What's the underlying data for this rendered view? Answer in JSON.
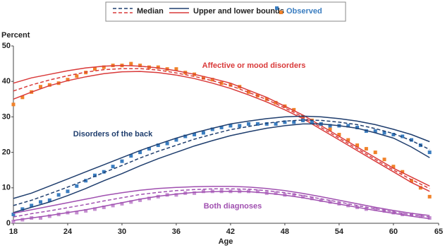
{
  "chart_data": {
    "type": "line",
    "y_label": "Percent",
    "x_label": "Age",
    "xlim": [
      18,
      65
    ],
    "xticks": [
      18,
      24,
      30,
      36,
      42,
      48,
      54,
      60,
      65
    ],
    "ylim": [
      0,
      50
    ],
    "yticks": [
      0,
      10,
      20,
      30,
      40,
      50
    ],
    "legend": [
      {
        "label": "Median",
        "style": "dashed",
        "colors": [
          "#1f3e6e",
          "#d93a3a"
        ]
      },
      {
        "label": "Upper and lower bounds",
        "style": "solid",
        "colors": [
          "#1f3e6e",
          "#d93a3a"
        ]
      },
      {
        "label": "Observed",
        "style": "square",
        "colors": [
          "#3a7dc0",
          "#f0822a"
        ]
      }
    ],
    "x": [
      18,
      20,
      22,
      24,
      26,
      28,
      30,
      32,
      34,
      36,
      38,
      40,
      42,
      44,
      46,
      48,
      50,
      52,
      54,
      56,
      58,
      60,
      62,
      64
    ],
    "observed_x": [
      18,
      19,
      20,
      21,
      22,
      23,
      24,
      25,
      26,
      27,
      28,
      29,
      30,
      31,
      32,
      33,
      34,
      35,
      36,
      37,
      38,
      39,
      40,
      41,
      42,
      43,
      44,
      45,
      46,
      47,
      48,
      49,
      50,
      51,
      52,
      53,
      54,
      55,
      56,
      57,
      58,
      59,
      60,
      61,
      62,
      63,
      64
    ],
    "groups": [
      {
        "name": "Affective or mood disorders",
        "color": "#d93a3a",
        "marker_color": "#f0822a",
        "median": [
          37.3,
          39,
          40.4,
          41.6,
          42.6,
          43.3,
          43.6,
          43.6,
          43.2,
          42.4,
          41.4,
          40.2,
          38.8,
          36.9,
          34.9,
          32.5,
          30,
          27,
          24,
          21,
          18,
          15,
          12.3,
          9.8
        ],
        "upper": [
          39.5,
          41,
          42,
          43,
          43.8,
          44.3,
          44.5,
          44.3,
          43.8,
          43,
          42,
          40.8,
          39.5,
          37.5,
          35.5,
          33,
          30.5,
          27.5,
          24.5,
          21.5,
          18.5,
          15.5,
          13,
          10.5
        ],
        "lower": [
          35,
          37,
          38.8,
          40.2,
          41.3,
          42.2,
          42.7,
          42.8,
          42.5,
          41.8,
          40.8,
          39.5,
          38,
          36.2,
          34.2,
          32,
          29.5,
          26.5,
          23.5,
          20.5,
          17.5,
          14.5,
          11.5,
          9
        ],
        "observed": [
          33.5,
          35.5,
          37,
          38.5,
          39,
          39.5,
          40.5,
          41.5,
          42.5,
          43.5,
          44,
          44.5,
          44.5,
          45,
          44.5,
          44,
          44,
          43.5,
          43.5,
          42.5,
          42,
          41,
          40.5,
          39.5,
          39,
          38.5,
          37,
          36,
          35,
          34,
          33,
          32,
          30,
          29,
          28,
          26.5,
          25,
          23.5,
          22,
          21,
          20,
          18,
          16,
          14.5,
          12,
          10,
          7.5
        ]
      },
      {
        "name": "Disorders of the back",
        "color": "#1f3e6e",
        "marker_color": "#3a7dc0",
        "median": [
          5,
          6.5,
          8.3,
          10.2,
          12.2,
          14.3,
          16.3,
          18.4,
          20.3,
          22,
          23.7,
          25.1,
          26.4,
          27.3,
          28.2,
          28.8,
          29.1,
          29,
          28.5,
          27.8,
          26.7,
          25.3,
          23.3,
          20.8
        ],
        "upper": [
          7,
          8.5,
          10.5,
          12.5,
          14.5,
          16.5,
          18.5,
          20.5,
          22.3,
          24,
          25.5,
          26.8,
          28,
          28.8,
          29.5,
          30,
          30.2,
          30,
          29.5,
          28.8,
          27.8,
          26.5,
          25,
          23
        ],
        "lower": [
          3,
          4.5,
          6,
          7.8,
          9.8,
          12,
          14,
          16.2,
          18.2,
          20,
          21.8,
          23.3,
          24.7,
          25.8,
          26.8,
          27.5,
          28,
          28,
          27.5,
          26.8,
          25.5,
          24,
          21.5,
          18.5
        ],
        "observed": [
          2.5,
          4,
          5,
          6,
          6.5,
          8,
          9,
          10.5,
          12,
          13.5,
          14.5,
          16,
          17.5,
          19,
          20,
          21,
          22,
          22.5,
          23.5,
          24.5,
          25,
          25.5,
          26.5,
          27,
          27.5,
          27.5,
          28,
          28,
          28,
          28,
          28.5,
          28.5,
          29,
          28.5,
          28,
          27.5,
          27.5,
          27.5,
          27,
          26,
          26,
          25.5,
          25,
          24.5,
          23.5,
          22,
          20
        ]
      },
      {
        "name": "Both diagnoses",
        "color": "#a050b0",
        "marker_color": "#c58fd0",
        "median": [
          1.8,
          2.7,
          3.5,
          4.4,
          5.3,
          6.3,
          7.2,
          8.1,
          8.7,
          9.2,
          9.5,
          9.7,
          9.7,
          9.6,
          9.2,
          8.6,
          7.8,
          6.9,
          6,
          5,
          4.1,
          3.2,
          2.4,
          1.8
        ],
        "upper": [
          2.8,
          3.8,
          4.8,
          5.8,
          6.8,
          7.8,
          8.6,
          9.3,
          9.8,
          10.1,
          10.3,
          10.4,
          10.4,
          10.2,
          9.8,
          9.2,
          8.4,
          7.5,
          6.5,
          5.5,
          4.5,
          3.6,
          2.8,
          2.2
        ],
        "lower": [
          0.8,
          1.5,
          2.2,
          3,
          3.8,
          4.8,
          5.8,
          6.8,
          7.6,
          8.2,
          8.7,
          8.9,
          9,
          8.9,
          8.5,
          7.9,
          7.2,
          6.3,
          5.4,
          4.5,
          3.6,
          2.8,
          2,
          1.3
        ],
        "observed": [
          0.5,
          1,
          1.5,
          1.5,
          2,
          2.5,
          3,
          3,
          3.5,
          4,
          4.5,
          5,
          5.5,
          6,
          6.5,
          7,
          7.5,
          8,
          8,
          8.5,
          8.5,
          9,
          9,
          9,
          9,
          9,
          9,
          9,
          8.5,
          8.5,
          8,
          8,
          7.5,
          7,
          6.5,
          6,
          5.5,
          5,
          4.5,
          4,
          4,
          3.5,
          3,
          2.5,
          2.5,
          2,
          1.5
        ]
      }
    ]
  }
}
